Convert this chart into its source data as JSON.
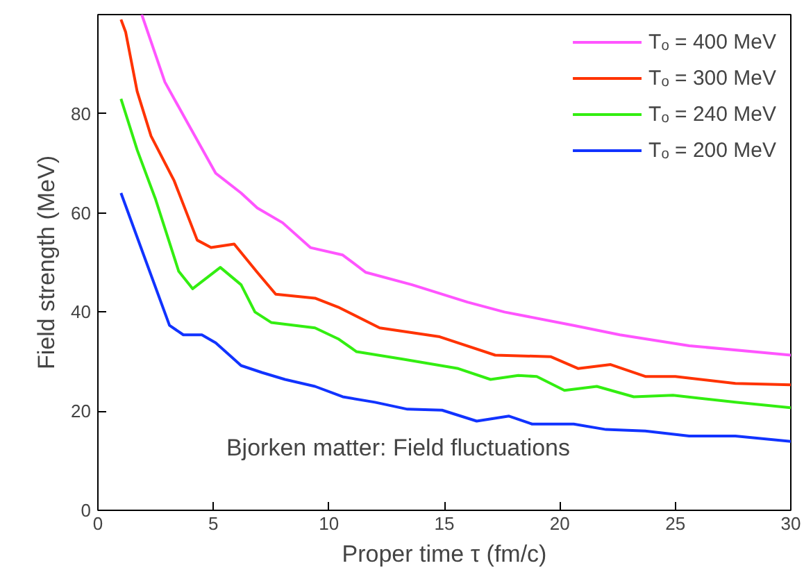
{
  "chart_data": {
    "type": "line",
    "xlabel": "Proper time τ (fm/c)",
    "ylabel": "Field strength (MeV)",
    "xlim": [
      0,
      30
    ],
    "ylim": [
      0,
      100
    ],
    "xticks": [
      0,
      5,
      10,
      15,
      20,
      25,
      30
    ],
    "yticks": [
      0,
      20,
      40,
      60,
      80
    ],
    "grid": false,
    "legend": "top right",
    "line_style": "solid",
    "marker": "none",
    "annotations": [
      "Bjorken matter: Field fluctuations"
    ],
    "series": [
      {
        "name": "Tₒ = 400 MeV",
        "color": "#ff55ff",
        "x": [
          1.9,
          2.9,
          3.9,
          5.1,
          6.2,
          6.9,
          8.0,
          9.2,
          10.6,
          11.6,
          13.6,
          16.0,
          17.6,
          20.6,
          22.6,
          25.6,
          30
        ],
        "values": [
          100,
          86.4,
          78,
          68,
          64,
          61,
          58,
          53,
          51.5,
          48,
          45.5,
          42,
          40,
          37.3,
          35.4,
          33.2,
          31.3
        ]
      },
      {
        "name": "Tₒ = 300 MeV",
        "color": "#ff3300",
        "x": [
          1.0,
          1.2,
          1.7,
          2.3,
          3.3,
          4.3,
          4.9,
          5.9,
          6.9,
          7.7,
          9.4,
          10.4,
          12.2,
          14.8,
          17.2,
          19.6,
          20.8,
          22.2,
          23.7,
          25,
          27.6,
          30
        ],
        "values": [
          99,
          96.5,
          84.5,
          75.5,
          66.5,
          54.5,
          53,
          53.7,
          48,
          43.6,
          42.8,
          41,
          36.8,
          35,
          31.3,
          31,
          28.6,
          29.4,
          27,
          27,
          25.6,
          25.3
        ]
      },
      {
        "name": "Tₒ = 240 MeV",
        "color": "#33ee11",
        "x": [
          1.0,
          1.7,
          2.5,
          3.5,
          4.1,
          5.3,
          6.2,
          6.8,
          7.5,
          9.4,
          10.4,
          11.2,
          13.2,
          15.6,
          17.0,
          18.2,
          19.0,
          20.2,
          21.6,
          23.2,
          24.9,
          27.6,
          30
        ],
        "values": [
          83,
          72.7,
          62.7,
          48.2,
          44.7,
          49,
          45.5,
          40,
          37.9,
          36.8,
          34.6,
          32,
          30.5,
          28.6,
          26.4,
          27.2,
          27,
          24.2,
          25,
          22.9,
          23.2,
          21.8,
          20.7
        ]
      },
      {
        "name": "Tₒ = 200 MeV",
        "color": "#1133ff",
        "x": [
          1.0,
          2.1,
          3.1,
          3.7,
          4.5,
          5.1,
          6.2,
          7.1,
          8.1,
          9.4,
          10.6,
          12,
          13.4,
          14.9,
          16.4,
          17.8,
          18.8,
          20.6,
          22,
          23.7,
          25.6,
          27.6,
          30
        ],
        "values": [
          64,
          50,
          37.3,
          35.4,
          35.4,
          33.8,
          29.2,
          27.8,
          26.4,
          25,
          22.9,
          21.8,
          20.4,
          20.2,
          18,
          19,
          17.4,
          17.4,
          16.3,
          16,
          15,
          15,
          13.9
        ]
      }
    ]
  }
}
